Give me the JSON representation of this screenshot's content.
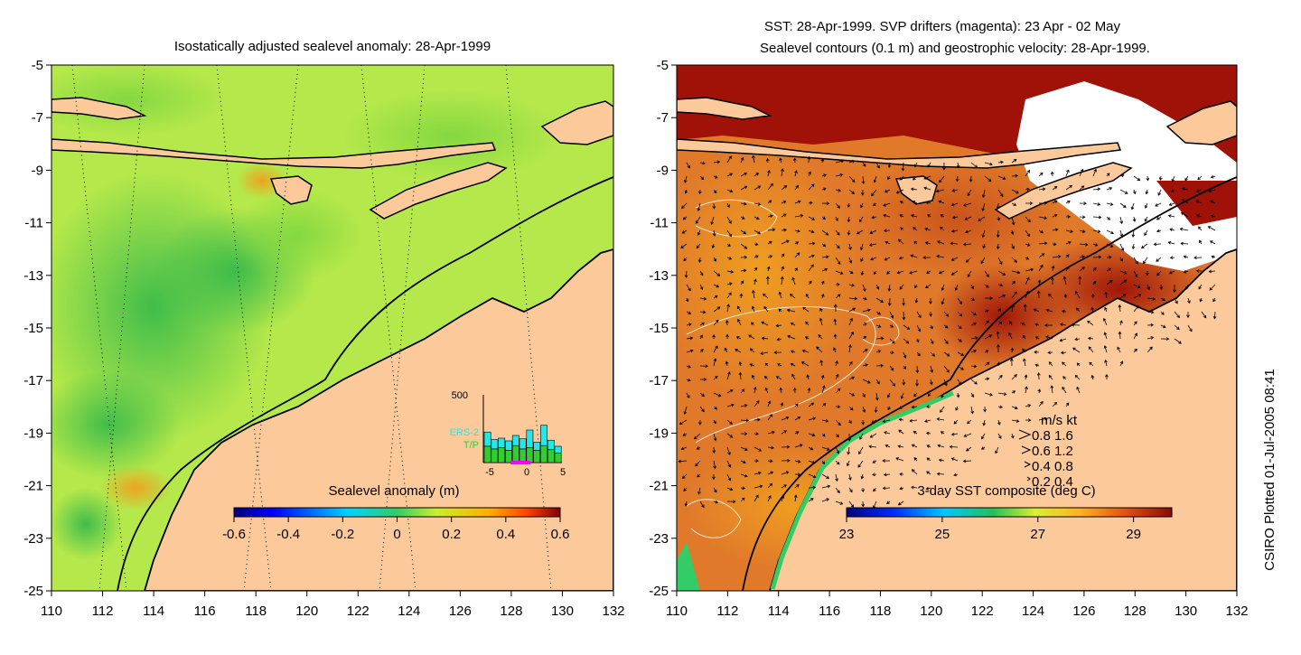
{
  "left_panel": {
    "title": "Isostatically adjusted sealevel anomaly: 28-Apr-1999",
    "colorbar": {
      "label": "Sealevel anomaly (m)",
      "ticks": [
        "-0.6",
        "-0.4",
        "-0.2",
        "0",
        "0.2",
        "0.4",
        "0.6"
      ],
      "range": [
        -0.6,
        0.6
      ]
    },
    "inset": {
      "y_label": "500",
      "legend": [
        "ERS-2",
        "T/P"
      ],
      "x_ticks": [
        "-5",
        "0",
        "5"
      ],
      "colors": {
        "ers2": "#29e6e6",
        "tp": "#33cc33",
        "marker": "#ff00ff"
      }
    }
  },
  "right_panel": {
    "title_line1": "SST: 28-Apr-1999. SVP drifters (magenta): 23 Apr - 02 May",
    "title_line2": "Sealevel contours (0.1 m) and geostrophic velocity: 28-Apr-1999.",
    "colorbar": {
      "label": "3-day SST composite (deg C)",
      "ticks": [
        "23",
        "25",
        "27",
        "29"
      ],
      "range": [
        23,
        29.8
      ]
    },
    "velocity_legend": {
      "header": "m/s  kt",
      "rows": [
        "0.8  1.6",
        "0.6  1.2",
        "0.4  0.8",
        "0.2  0.4"
      ]
    }
  },
  "axes": {
    "y_ticks": [
      "-5",
      "-7",
      "-9",
      "-11",
      "-13",
      "-15",
      "-17",
      "-19",
      "-21",
      "-23",
      "-25"
    ],
    "x_ticks": [
      "110",
      "112",
      "114",
      "116",
      "118",
      "120",
      "122",
      "124",
      "126",
      "128",
      "130",
      "132"
    ],
    "lon_range": [
      110,
      132
    ],
    "lat_range": [
      -25,
      -5
    ]
  },
  "side_label": "CSIRO Plotted 01-Jul-2005 08:41",
  "colors": {
    "land": "#fcc99b",
    "ocean_sla": "#b5e84a",
    "ocean_sst": "#e07a2a",
    "sst_hot": "#a01208",
    "coast": "#000000"
  }
}
